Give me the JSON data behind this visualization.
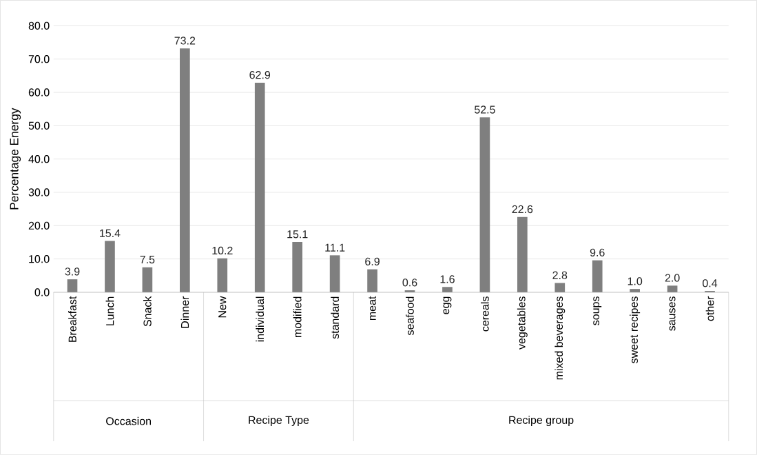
{
  "chart_data": {
    "type": "bar",
    "ylabel": "Percentage Energy",
    "categories": [
      "Breakfast",
      "Lunch",
      "Snack",
      "Dinner",
      "New",
      "individual",
      "modified",
      "standard",
      "meat",
      "seafood",
      "egg",
      "cereals",
      "vegetables",
      "mixed beverages",
      "soups",
      "sweet recipes",
      "sauses",
      "other"
    ],
    "values": [
      3.9,
      15.4,
      7.5,
      73.2,
      10.2,
      62.9,
      15.1,
      11.1,
      6.9,
      0.6,
      1.6,
      52.5,
      22.6,
      2.8,
      9.6,
      1.0,
      2.0,
      0.4
    ],
    "value_labels": [
      "3.9",
      "15.4",
      "7.5",
      "73.2",
      "10.2",
      "62.9",
      "15.1",
      "11.1",
      "6.9",
      "0.6",
      "1.6",
      "52.5",
      "22.6",
      "2.8",
      "9.6",
      "1.0",
      "2.0",
      "0.4"
    ],
    "color": "#7f7f7f",
    "ylim": [
      0,
      80
    ],
    "yticks": [
      {
        "value": 0,
        "label": "0.0"
      },
      {
        "value": 10,
        "label": "10.0"
      },
      {
        "value": 20,
        "label": "20.0"
      },
      {
        "value": 30,
        "label": "30.0"
      },
      {
        "value": 40,
        "label": "40.0"
      },
      {
        "value": 50,
        "label": "50.0"
      },
      {
        "value": 60,
        "label": "60.0"
      },
      {
        "value": 70,
        "label": "70.0"
      },
      {
        "value": 80,
        "label": "80.0"
      }
    ],
    "grid": "y",
    "annotations": [
      "Occasion",
      "Recipe Type",
      "Recipe group"
    ]
  }
}
